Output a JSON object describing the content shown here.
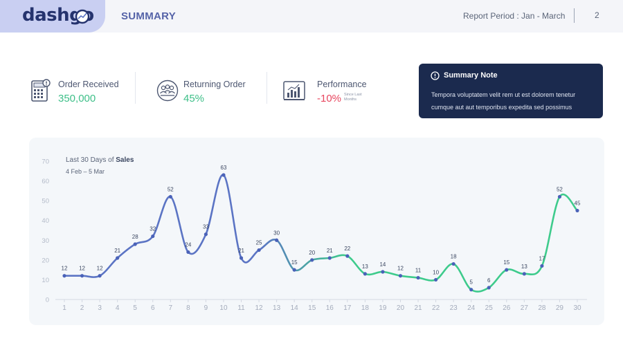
{
  "header": {
    "brand": "dashgo",
    "section_title": "SUMMARY",
    "period": "Report Period : Jan - March",
    "page_number": "2",
    "brand_color": "#25336e",
    "brand_bg": "#c9cff2"
  },
  "kpis": [
    {
      "label": "Order Received",
      "value": "350,000",
      "icon": "calculator-icon",
      "value_color": "#3dbf88"
    },
    {
      "label": "Returning Order",
      "value": "45%",
      "icon": "customers-group-icon",
      "value_color": "#3dbf88"
    },
    {
      "label": "Performance",
      "value": "-10%",
      "note": "Since Last Months",
      "icon": "bar-chart-icon",
      "value_color": "#e8455e"
    }
  ],
  "summary_note": {
    "title": "Summary Note",
    "icon": "info-icon",
    "body": "Tempora voluptatem velit rem ut est dolorem tenetur cumque aut aut temporibus expedita sed possimus"
  },
  "chart_data": {
    "type": "line",
    "title_prefix": "Last 30 Days of ",
    "title_emphasis": "Sales",
    "subtitle": "4 Feb – 5 Mar",
    "x": [
      "1",
      "2",
      "3",
      "4",
      "5",
      "6",
      "7",
      "8",
      "9",
      "10",
      "11",
      "12",
      "13",
      "14",
      "15",
      "16",
      "17",
      "18",
      "19",
      "20",
      "21",
      "22",
      "23",
      "24",
      "25",
      "26",
      "27",
      "28",
      "29",
      "30"
    ],
    "values": [
      12,
      12,
      12,
      21,
      28,
      32,
      52,
      24,
      33,
      63,
      21,
      25,
      30,
      15,
      20,
      21,
      22,
      13,
      14,
      12,
      11,
      10,
      18,
      5,
      6,
      15,
      13,
      17,
      52,
      45
    ],
    "yticks": [
      0,
      10,
      20,
      30,
      40,
      50,
      60,
      70
    ],
    "ylim": [
      0,
      70
    ],
    "grid": false,
    "colors": {
      "start": "#5b74c4",
      "end": "#3ecb8c",
      "point": "#4a62b8"
    },
    "smooth": true,
    "data_labels": true
  }
}
